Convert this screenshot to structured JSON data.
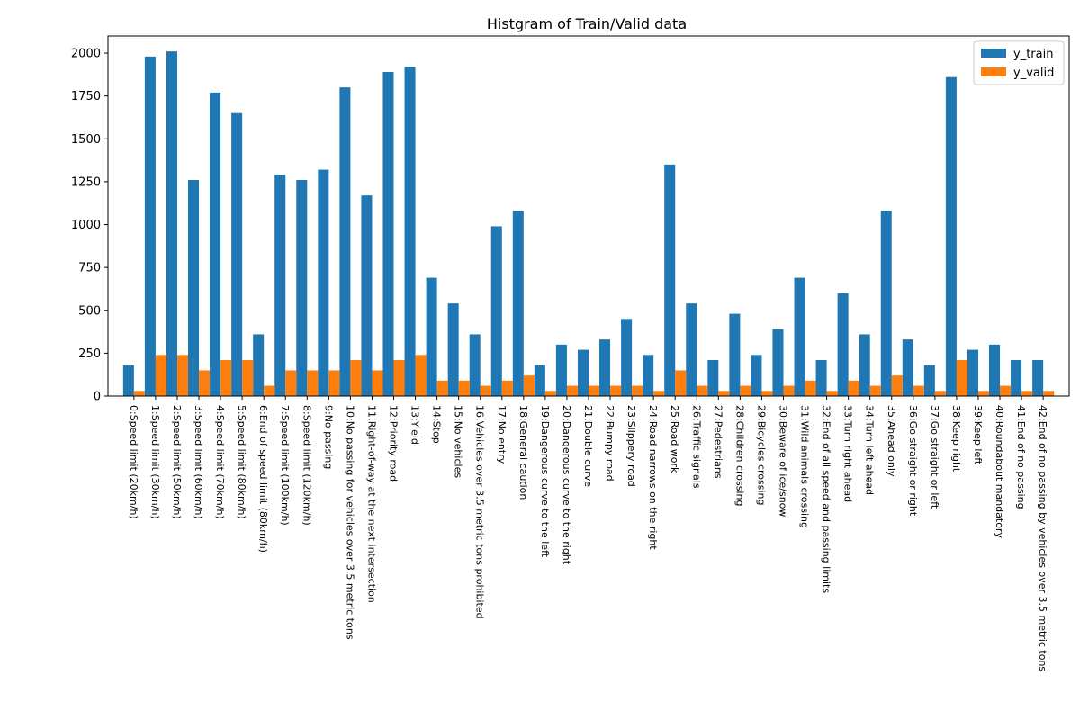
{
  "chart_data": {
    "type": "bar",
    "title": "Histgram of Train/Valid data",
    "xlabel": "",
    "ylabel": "",
    "ylim": [
      0,
      2100
    ],
    "yticks": [
      0,
      250,
      500,
      750,
      1000,
      1250,
      1500,
      1750,
      2000
    ],
    "grid": false,
    "legend_position": "top-right",
    "categories": [
      "0:Speed limit (20km/h)",
      "1:Speed limit (30km/h)",
      "2:Speed limit (50km/h)",
      "3:Speed limit (60km/h)",
      "4:Speed limit (70km/h)",
      "5:Speed limit (80km/h)",
      "6:End of speed limit (80km/h)",
      "7:Speed limit (100km/h)",
      "8:Speed limit (120km/h)",
      "9:No passing",
      "10:No passing for vehicles over 3.5 metric tons",
      "11:Right-of-way at the next intersection",
      "12:Priority road",
      "13:Yield",
      "14:Stop",
      "15:No vehicles",
      "16:Vehicles over 3.5 metric tons prohibited",
      "17:No entry",
      "18:General caution",
      "19:Dangerous curve to the left",
      "20:Dangerous curve to the right",
      "21:Double curve",
      "22:Bumpy road",
      "23:Slippery road",
      "24:Road narrows on the right",
      "25:Road work",
      "26:Traffic signals",
      "27:Pedestrians",
      "28:Children crossing",
      "29:Bicycles crossing",
      "30:Beware of ice/snow",
      "31:Wild animals crossing",
      "32:End of all speed and passing limits",
      "33:Turn right ahead",
      "34:Turn left ahead",
      "35:Ahead only",
      "36:Go straight or right",
      "37:Go straight or left",
      "38:Keep right",
      "39:Keep left",
      "40:Roundabout mandatory",
      "41:End of no passing",
      "42:End of no passing by vehicles over 3.5 metric tons"
    ],
    "series": [
      {
        "name": "y_train",
        "color": "#1f77b4",
        "values": [
          180,
          1980,
          2010,
          1260,
          1770,
          1650,
          360,
          1290,
          1260,
          1320,
          1800,
          1170,
          1890,
          1920,
          690,
          540,
          360,
          990,
          1080,
          180,
          300,
          270,
          330,
          450,
          240,
          1350,
          540,
          210,
          480,
          240,
          390,
          690,
          210,
          600,
          360,
          1080,
          330,
          180,
          1860,
          270,
          300,
          210,
          210
        ]
      },
      {
        "name": "y_valid",
        "color": "#ff7f0e",
        "values": [
          30,
          240,
          240,
          150,
          210,
          210,
          60,
          150,
          150,
          150,
          210,
          150,
          210,
          240,
          90,
          90,
          60,
          90,
          120,
          30,
          60,
          60,
          60,
          60,
          30,
          150,
          60,
          30,
          60,
          30,
          60,
          90,
          30,
          90,
          60,
          120,
          60,
          30,
          210,
          30,
          60,
          30,
          30
        ]
      }
    ]
  }
}
